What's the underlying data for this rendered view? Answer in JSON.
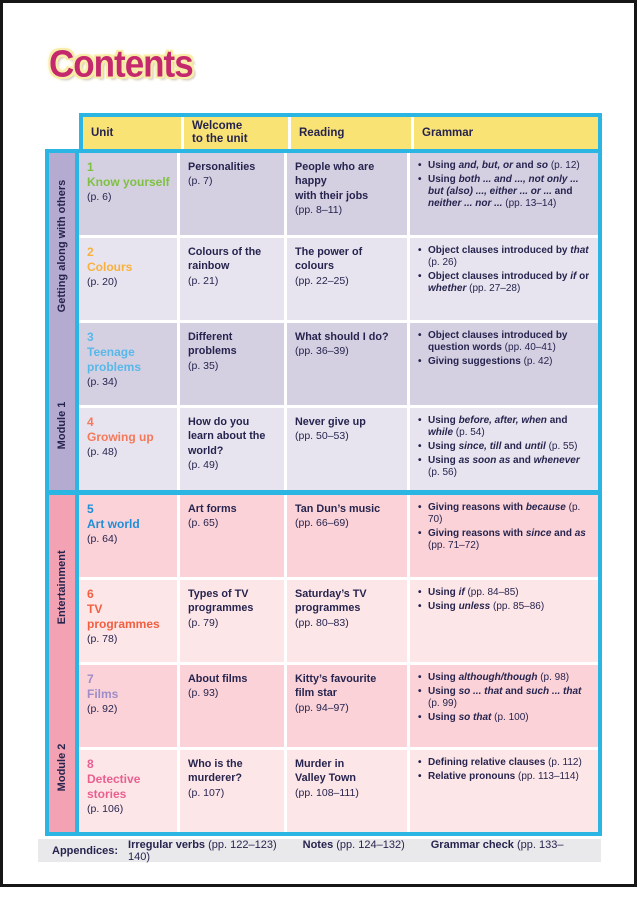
{
  "page": {
    "title": "Contents",
    "colors": {
      "accent_cyan": "#2ab5e3",
      "header_yellow": "#f9e374",
      "title_magenta": "#c5296d",
      "text_navy": "#26244e",
      "footer_gray": "#e9e8ea",
      "page_border": "#161616"
    }
  },
  "table": {
    "headers": [
      "Unit",
      "Welcome\nto the unit",
      "Reading",
      "Grammar"
    ],
    "modules": [
      {
        "module_label": "Module 1",
        "section_label": "Getting along with others",
        "sidebar_color": "#b5aad0",
        "row_colors": [
          "#d5cfe2",
          "#e7e4ef"
        ],
        "rows": [
          {
            "unit_number": "1",
            "unit_title": "Know yourself",
            "unit_page": "(p. 6)",
            "unit_color": "#7ec142",
            "welcome": {
              "text": "Personalities",
              "page": "(p. 7)"
            },
            "reading": {
              "text": "People who are happy\nwith their jobs",
              "page": "(pp. 8–11)"
            },
            "grammar": [
              [
                {
                  "t": "Using "
                },
                {
                  "t": "and, but, or",
                  "i": true
                },
                {
                  "t": " and "
                },
                {
                  "t": "so",
                  "i": true
                },
                {
                  "t": " "
                },
                {
                  "t": "(p. 12)",
                  "n": true
                }
              ],
              [
                {
                  "t": "Using "
                },
                {
                  "t": "both ... and ..., not only ... but (also) ..., either ... or ...",
                  "i": true
                },
                {
                  "t": " and "
                },
                {
                  "t": "neither ... nor ...",
                  "i": true
                },
                {
                  "t": " "
                },
                {
                  "t": "(pp. 13–14)",
                  "n": true
                }
              ]
            ]
          },
          {
            "unit_number": "2",
            "unit_title": "Colours",
            "unit_page": "(p. 20)",
            "unit_color": "#f9b13e",
            "welcome": {
              "text": "Colours of the\nrainbow",
              "page": "(p. 21)"
            },
            "reading": {
              "text": "The power of\ncolours",
              "page": "(pp. 22–25)"
            },
            "grammar": [
              [
                {
                  "t": "Object clauses introduced by "
                },
                {
                  "t": "that",
                  "i": true
                },
                {
                  "t": " "
                },
                {
                  "t": "(p. 26)",
                  "n": true
                }
              ],
              [
                {
                  "t": "Object clauses introduced by "
                },
                {
                  "t": "if",
                  "i": true
                },
                {
                  "t": " or "
                },
                {
                  "t": "whether",
                  "i": true
                },
                {
                  "t": " "
                },
                {
                  "t": "(pp. 27–28)",
                  "n": true
                }
              ]
            ]
          },
          {
            "unit_number": "3",
            "unit_title": "Teenage\nproblems",
            "unit_page": "(p. 34)",
            "unit_color": "#58b9e8",
            "welcome": {
              "text": "Different\nproblems",
              "page": "(p. 35)"
            },
            "reading": {
              "text": "What should I do?",
              "page": "(pp. 36–39)"
            },
            "grammar": [
              [
                {
                  "t": "Object clauses introduced by question words "
                },
                {
                  "t": "(pp. 40–41)",
                  "n": true
                }
              ],
              [
                {
                  "t": "Giving suggestions "
                },
                {
                  "t": "(p. 42)",
                  "n": true
                }
              ]
            ]
          },
          {
            "unit_number": "4",
            "unit_title": "Growing up",
            "unit_page": "(p. 48)",
            "unit_color": "#f4795b",
            "welcome": {
              "text": "How do you\nlearn about the\nworld?",
              "page": "(p. 49)"
            },
            "reading": {
              "text": "Never give up",
              "page": "(pp. 50–53)"
            },
            "grammar": [
              [
                {
                  "t": "Using "
                },
                {
                  "t": "before, after, when",
                  "i": true
                },
                {
                  "t": " and "
                },
                {
                  "t": "while",
                  "i": true
                },
                {
                  "t": " "
                },
                {
                  "t": "(p. 54)",
                  "n": true
                }
              ],
              [
                {
                  "t": "Using "
                },
                {
                  "t": "since, till",
                  "i": true
                },
                {
                  "t": " and "
                },
                {
                  "t": "until",
                  "i": true
                },
                {
                  "t": " "
                },
                {
                  "t": "(p. 55)",
                  "n": true
                }
              ],
              [
                {
                  "t": "Using "
                },
                {
                  "t": "as soon as",
                  "i": true
                },
                {
                  "t": " and "
                },
                {
                  "t": "whenever",
                  "i": true
                },
                {
                  "t": " "
                },
                {
                  "t": "(p. 56)",
                  "n": true
                }
              ]
            ]
          }
        ]
      },
      {
        "module_label": "Module 2",
        "section_label": "Entertainment",
        "sidebar_color": "#f2a2b2",
        "row_colors": [
          "#fad2d8",
          "#fde6e8"
        ],
        "rows": [
          {
            "unit_number": "5",
            "unit_title": "Art world",
            "unit_page": "(p. 64)",
            "unit_color": "#1e8ed6",
            "welcome": {
              "text": "Art forms",
              "page": "(p. 65)"
            },
            "reading": {
              "text": "Tan Dun’s music",
              "page": "(pp. 66–69)"
            },
            "grammar": [
              [
                {
                  "t": "Giving reasons with "
                },
                {
                  "t": "because",
                  "i": true
                },
                {
                  "t": " "
                },
                {
                  "t": "(p. 70)",
                  "n": true
                }
              ],
              [
                {
                  "t": "Giving reasons with "
                },
                {
                  "t": "since",
                  "i": true
                },
                {
                  "t": " and "
                },
                {
                  "t": "as",
                  "i": true
                },
                {
                  "t": " "
                },
                {
                  "t": "(pp. 71–72)",
                  "n": true
                }
              ]
            ]
          },
          {
            "unit_number": "6",
            "unit_title": "TV\nprogrammes",
            "unit_page": "(p. 78)",
            "unit_color": "#f15f40",
            "welcome": {
              "text": "Types of TV\nprogrammes",
              "page": "(p. 79)"
            },
            "reading": {
              "text": "Saturday’s TV\nprogrammes",
              "page": "(pp. 80–83)"
            },
            "grammar": [
              [
                {
                  "t": "Using "
                },
                {
                  "t": "if",
                  "i": true
                },
                {
                  "t": " "
                },
                {
                  "t": "(pp. 84–85)",
                  "n": true
                }
              ],
              [
                {
                  "t": "Using "
                },
                {
                  "t": "unless",
                  "i": true
                },
                {
                  "t": " "
                },
                {
                  "t": "(pp. 85–86)",
                  "n": true
                }
              ]
            ]
          },
          {
            "unit_number": "7",
            "unit_title": "Films",
            "unit_page": "(p. 92)",
            "unit_color": "#9e8dc8",
            "welcome": {
              "text": "About films",
              "page": "(p. 93)"
            },
            "reading": {
              "text": "Kitty’s favourite\nfilm star",
              "page": "(pp. 94–97)"
            },
            "grammar": [
              [
                {
                  "t": "Using "
                },
                {
                  "t": "although/though",
                  "i": true
                },
                {
                  "t": " "
                },
                {
                  "t": "(p. 98)",
                  "n": true
                }
              ],
              [
                {
                  "t": "Using "
                },
                {
                  "t": "so ... that",
                  "i": true
                },
                {
                  "t": " and "
                },
                {
                  "t": "such ... that",
                  "i": true
                },
                {
                  "t": " "
                },
                {
                  "t": "(p. 99)",
                  "n": true
                }
              ],
              [
                {
                  "t": "Using "
                },
                {
                  "t": "so that",
                  "i": true
                },
                {
                  "t": " "
                },
                {
                  "t": "(p. 100)",
                  "n": true
                }
              ]
            ]
          },
          {
            "unit_number": "8",
            "unit_title": "Detective\nstories",
            "unit_page": "(p. 106)",
            "unit_color": "#e95f90",
            "welcome": {
              "text": "Who is the\nmurderer?",
              "page": "(p. 107)"
            },
            "reading": {
              "text": "Murder in\nValley Town",
              "page": "(pp. 108–111)"
            },
            "grammar": [
              [
                {
                  "t": "Defining relative clauses "
                },
                {
                  "t": "(p. 112)",
                  "n": true
                }
              ],
              [
                {
                  "t": "Relative pronouns "
                },
                {
                  "t": "(pp. 113–114)",
                  "n": true
                }
              ]
            ]
          }
        ]
      }
    ]
  },
  "footer": {
    "prefix": "Appendices:",
    "items": [
      {
        "label": "Irregular verbs",
        "pages": "(pp. 122–123)"
      },
      {
        "label": "Notes",
        "pages": "(pp. 124–132)"
      },
      {
        "label": "Grammar check",
        "pages": "(pp. 133–140)"
      }
    ]
  }
}
